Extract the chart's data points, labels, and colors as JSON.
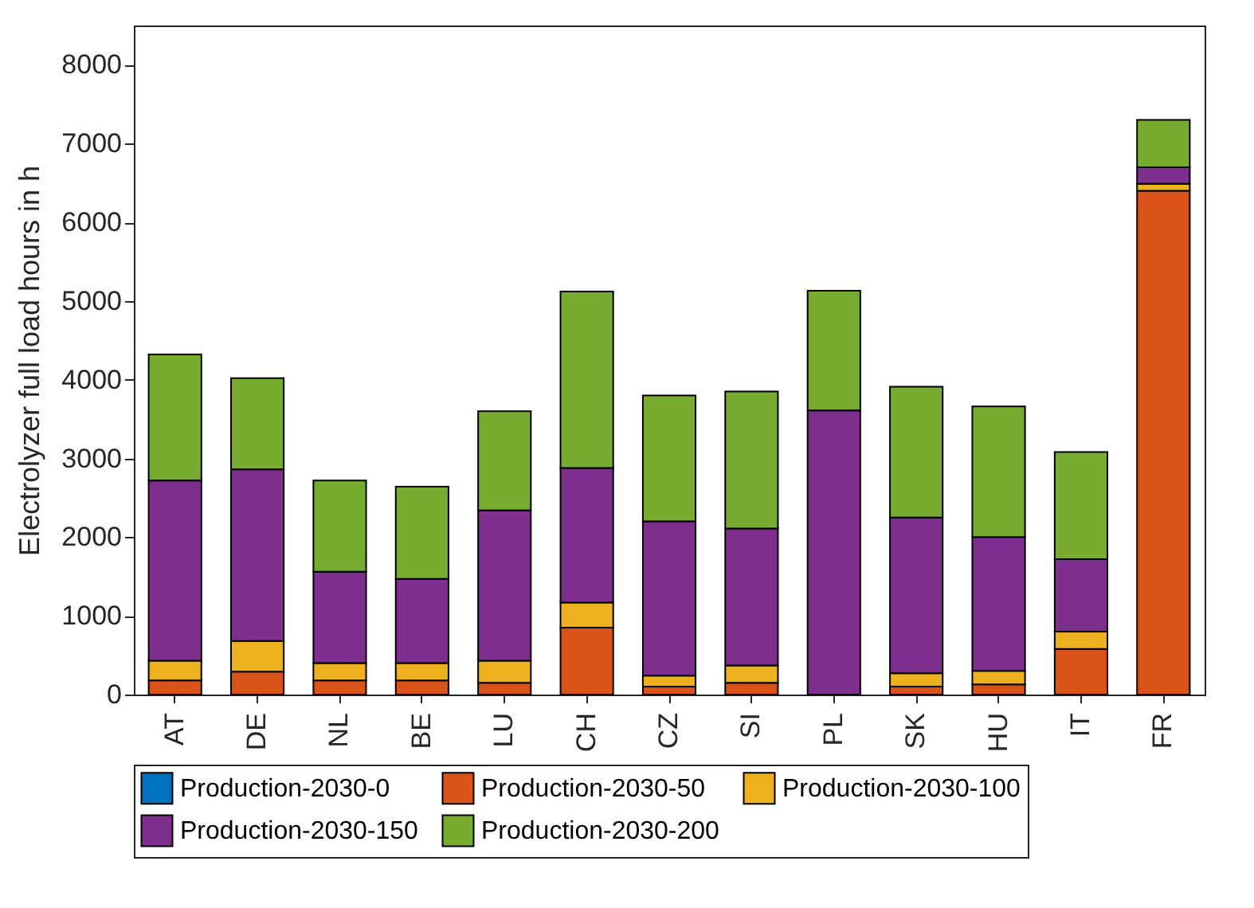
{
  "chart_data": {
    "type": "bar",
    "stacked": true,
    "ylabel": "Electrolyzer full load hours in h",
    "categories": [
      "AT",
      "DE",
      "NL",
      "BE",
      "LU",
      "CH",
      "CZ",
      "SI",
      "PL",
      "SK",
      "HU",
      "IT",
      "FR"
    ],
    "series": [
      {
        "name": "Production-2030-0",
        "color": "#0072bd",
        "values": [
          0,
          0,
          0,
          0,
          0,
          0,
          0,
          0,
          0,
          0,
          0,
          0,
          0
        ]
      },
      {
        "name": "Production-2030-50",
        "color": "#d95319",
        "values": [
          180,
          290,
          180,
          180,
          150,
          850,
          100,
          150,
          null,
          100,
          130,
          580,
          6400
        ]
      },
      {
        "name": "Production-2030-100",
        "color": "#edb120",
        "values": [
          250,
          390,
          220,
          220,
          280,
          320,
          140,
          220,
          0,
          170,
          170,
          220,
          90
        ]
      },
      {
        "name": "Production-2030-150",
        "color": "#7e2f8e",
        "values": [
          2290,
          2180,
          1160,
          1070,
          1910,
          1710,
          1960,
          1740,
          3610,
          1980,
          1700,
          920,
          210
        ]
      },
      {
        "name": "Production-2030-200",
        "color": "#77ac30",
        "values": [
          1600,
          1160,
          1160,
          1170,
          1260,
          2240,
          1600,
          1740,
          1520,
          1660,
          1660,
          1360,
          600
        ]
      }
    ],
    "ylim": [
      0,
      8500
    ],
    "yticks": [
      0,
      1000,
      2000,
      3000,
      4000,
      5000,
      6000,
      7000,
      8000
    ],
    "grid": false,
    "legend": "bottom"
  }
}
